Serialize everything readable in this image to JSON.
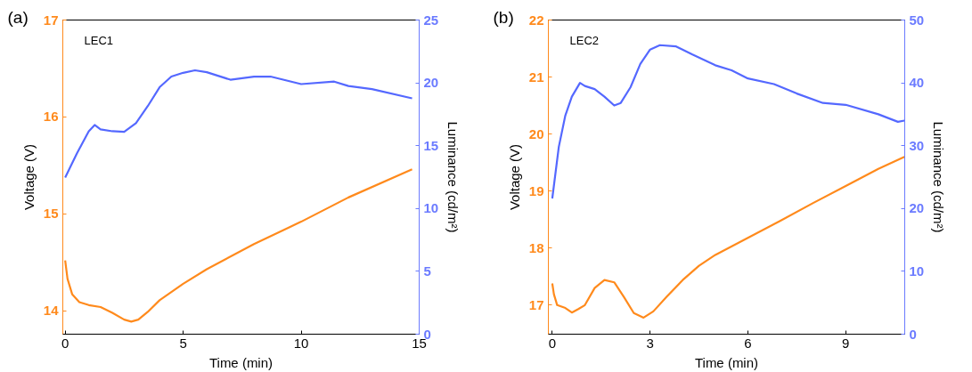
{
  "chart_data": [
    {
      "type": "line",
      "xlabel": "Time (min)",
      "ylabel": "Voltage (V)",
      "y2label": "Luminance (cd/m²)",
      "annotations": [
        "(a)",
        "LEC1"
      ],
      "xlim": [
        -0.1,
        15
      ],
      "xticks": [
        0,
        5,
        10,
        15
      ],
      "ylim": [
        13.76,
        17
      ],
      "yticks": [
        14,
        15,
        16,
        17
      ],
      "y2lim": [
        0,
        25
      ],
      "y2ticks": [
        0,
        5,
        10,
        15,
        20,
        25
      ],
      "grid": false,
      "series": [
        {
          "color": "#ff8a1c",
          "x": [
            0,
            0.1,
            0.3,
            0.6,
            1,
            1.5,
            2,
            2.5,
            2.8,
            3.1,
            3.5,
            4,
            5,
            6,
            8,
            10,
            12,
            14.7
          ],
          "values": [
            14.52,
            14.33,
            14.17,
            14.09,
            14.06,
            14.04,
            13.98,
            13.91,
            13.89,
            13.91,
            13.99,
            14.11,
            14.28,
            14.43,
            14.69,
            14.92,
            15.17,
            15.46
          ]
        },
        {
          "color": "#5468ff",
          "axis": "y2",
          "x": [
            0,
            0.5,
            1,
            1.25,
            1.5,
            2,
            2.5,
            3,
            3.5,
            4,
            4.5,
            5,
            5.5,
            6,
            7,
            8,
            8.7,
            10,
            11.4,
            12,
            13,
            14.7
          ],
          "values": [
            12.46,
            14.4,
            16.15,
            16.65,
            16.3,
            16.15,
            16.1,
            16.8,
            18.15,
            19.65,
            20.5,
            20.8,
            21.0,
            20.85,
            20.25,
            20.5,
            20.5,
            19.9,
            20.1,
            19.75,
            19.5,
            18.77
          ]
        }
      ]
    },
    {
      "type": "line",
      "xlabel": "Time (min)",
      "ylabel": "Voltage (V)",
      "y2label": "Luminance (cd/m²)",
      "annotations": [
        "(b)",
        "LEC2"
      ],
      "xlim": [
        -0.12,
        10.81
      ],
      "xticks": [
        0,
        3,
        6,
        9
      ],
      "ylim": [
        16.49,
        22
      ],
      "yticks": [
        17,
        18,
        19,
        20,
        21,
        22
      ],
      "y2lim": [
        0,
        50
      ],
      "y2ticks": [
        0,
        10,
        20,
        30,
        40,
        50
      ],
      "grid": false,
      "series": [
        {
          "color": "#ff8a1c",
          "x": [
            0,
            0.05,
            0.15,
            0.4,
            0.6,
            0.8,
            1.0,
            1.3,
            1.6,
            1.9,
            2.2,
            2.5,
            2.8,
            3.1,
            3.5,
            4,
            4.5,
            5,
            6,
            7,
            8,
            9,
            10,
            10.8
          ],
          "values": [
            17.38,
            17.19,
            17.0,
            16.95,
            16.87,
            16.93,
            17.0,
            17.3,
            17.44,
            17.4,
            17.14,
            16.86,
            16.78,
            16.89,
            17.14,
            17.44,
            17.69,
            17.88,
            18.18,
            18.48,
            18.79,
            19.09,
            19.39,
            19.6
          ]
        },
        {
          "color": "#5468ff",
          "axis": "y2",
          "x": [
            0,
            0.2,
            0.4,
            0.6,
            0.85,
            1.0,
            1.3,
            1.6,
            1.9,
            2.1,
            2.4,
            2.7,
            3.0,
            3.3,
            3.8,
            4.3,
            5,
            5.5,
            6,
            6.8,
            7.5,
            8.3,
            9,
            10,
            10.6,
            10.8
          ],
          "values": [
            21.6,
            29.8,
            34.8,
            37.8,
            40.0,
            39.5,
            39.0,
            37.8,
            36.4,
            36.8,
            39.3,
            43.0,
            45.3,
            46.0,
            45.8,
            44.5,
            42.8,
            42.0,
            40.7,
            39.8,
            38.3,
            36.8,
            36.5,
            35.0,
            33.8,
            34.0
          ]
        }
      ]
    }
  ]
}
